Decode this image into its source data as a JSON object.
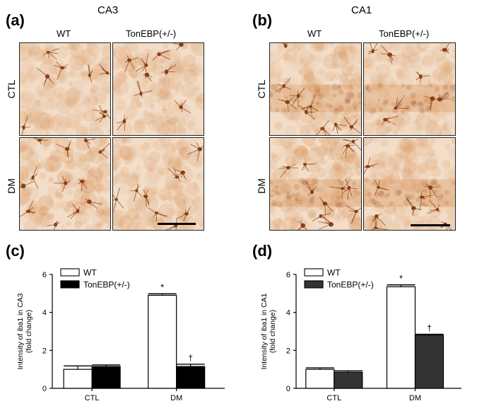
{
  "panels": {
    "a": {
      "letter": "(a)",
      "region": "CA3",
      "col_wt": "WT",
      "col_het": "TonEBP(+/-)",
      "row_ctl": "CTL",
      "row_dm": "DM"
    },
    "b": {
      "letter": "(b)",
      "region": "CA1",
      "col_wt": "WT",
      "col_het": "TonEBP(+/-)",
      "row_ctl": "CTL",
      "row_dm": "DM"
    },
    "c": {
      "letter": "(c)"
    },
    "d": {
      "letter": "(d)"
    }
  },
  "colors": {
    "wt_fill": "#ffffff",
    "het_fill_c": "#000000",
    "het_fill_d": "#333333",
    "tissue_light": "#f2ddc8",
    "tissue_dark": "#d9955c",
    "cell": "#8a3f12"
  },
  "chart_data": [
    {
      "type": "bar",
      "id": "c",
      "ylabel": "Intensity of iba1 in CA3\n(fold change)",
      "ylim": [
        0,
        6
      ],
      "yticks": [
        "0",
        "2",
        "4",
        "6"
      ],
      "categories": [
        "CTL",
        "DM"
      ],
      "series": [
        {
          "name": "WT",
          "values": [
            1.0,
            4.9
          ],
          "errors": [
            0.18,
            0.08
          ]
        },
        {
          "name": "TonEBP(+/-)",
          "values": [
            1.15,
            1.15
          ],
          "errors": [
            0.08,
            0.12
          ]
        }
      ],
      "annotations": [
        {
          "text": "*",
          "series": 0,
          "category": 1
        },
        {
          "text": "†",
          "series": 1,
          "category": 1
        }
      ],
      "legend": "top-left"
    },
    {
      "type": "bar",
      "id": "d",
      "ylabel": "Intensity of iba1 in CA1\n(fold change)",
      "ylim": [
        0,
        6
      ],
      "yticks": [
        "0",
        "2",
        "4",
        "6"
      ],
      "categories": [
        "CTL",
        "DM"
      ],
      "series": [
        {
          "name": "WT",
          "values": [
            1.0,
            5.35
          ],
          "errors": [
            0.08,
            0.1
          ]
        },
        {
          "name": "TonEBP(+/-)",
          "values": [
            0.85,
            2.8
          ],
          "errors": [
            0.07,
            0.05
          ]
        }
      ],
      "annotations": [
        {
          "text": "*",
          "series": 0,
          "category": 1
        },
        {
          "text": "†",
          "series": 1,
          "category": 1
        }
      ],
      "legend": "top-left"
    }
  ]
}
